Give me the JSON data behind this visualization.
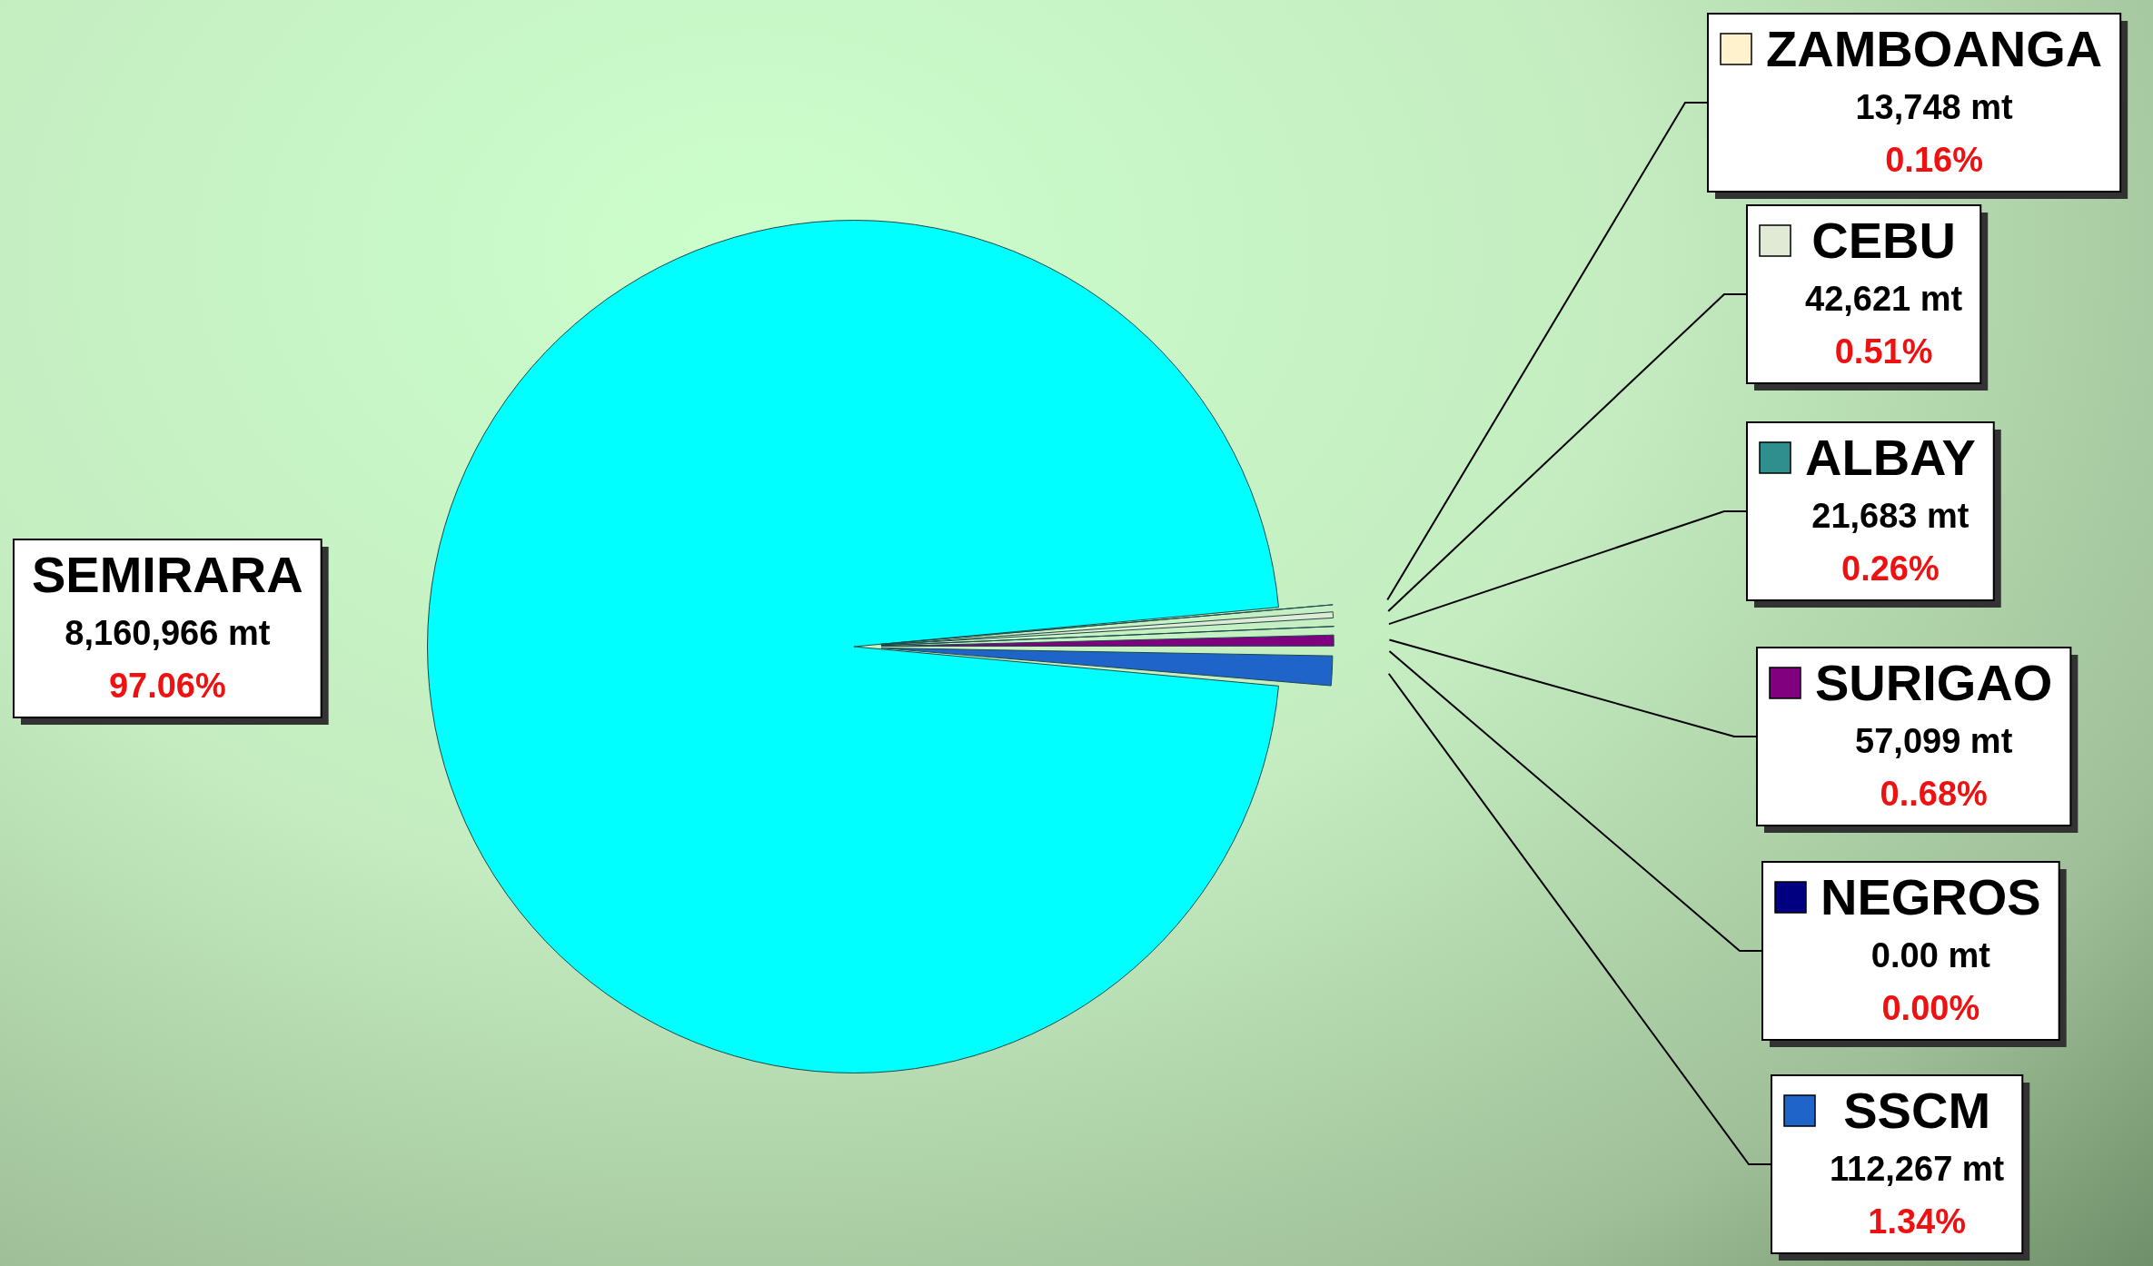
{
  "chart_data": {
    "type": "pie",
    "categories": [
      "SEMIRARA",
      "ZAMBOANGA",
      "CEBU",
      "ALBAY",
      "SURIGAO",
      "NEGROS",
      "SSCM"
    ],
    "values": [
      8160966,
      13748,
      42621,
      21683,
      57099,
      0,
      112267
    ],
    "colors": [
      "#00ffff",
      "#fff2cc",
      "#e0ead4",
      "#2f8f8f",
      "#800080",
      "#000080",
      "#1f64c8"
    ],
    "value_labels": [
      "8,160,966 mt",
      "13,748 mt",
      "42,621 mt",
      "21,683 mt",
      "57,099 mt",
      "0.00 mt",
      "112,267 mt"
    ],
    "annotations": [
      {
        "text": "97.06%",
        "x": "SEMIRARA"
      },
      {
        "text": "0.16%",
        "x": "ZAMBOANGA"
      },
      {
        "text": "0.51%",
        "x": "CEBU"
      },
      {
        "text": "0.26%",
        "x": "ALBAY"
      },
      {
        "text": "0..68%",
        "x": "SURIGAO"
      },
      {
        "text": "0.00%",
        "x": "NEGROS"
      },
      {
        "text": "1.34%",
        "x": "SSCM"
      }
    ],
    "legend": "right"
  }
}
